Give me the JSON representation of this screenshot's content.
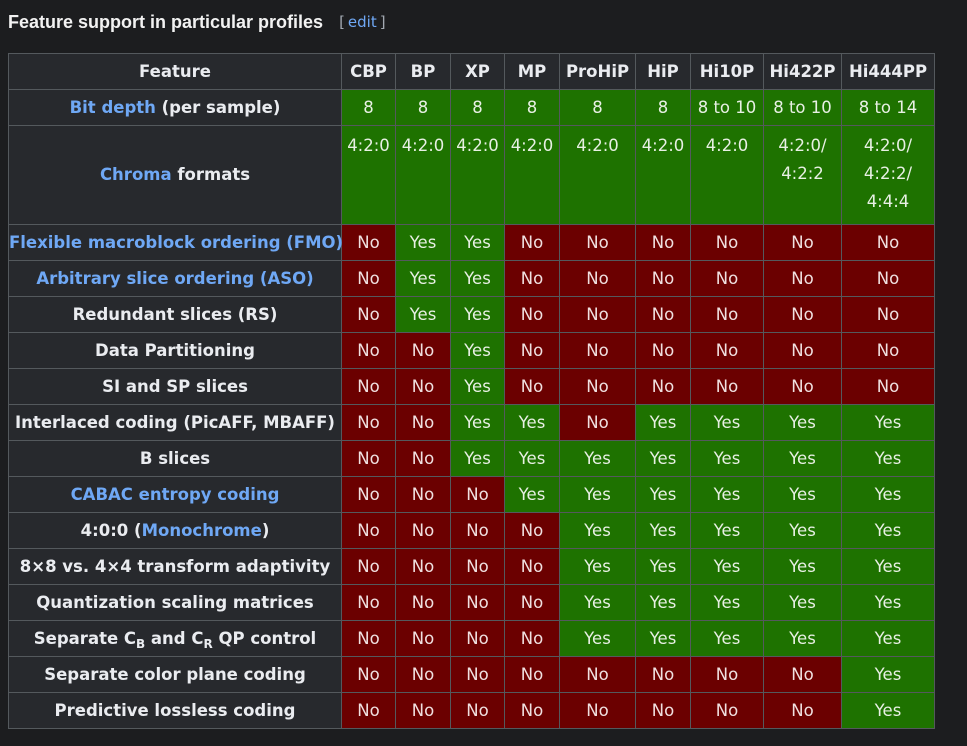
{
  "heading": {
    "title": "Feature support in particular profiles",
    "edit_open": "[",
    "edit_label": "edit",
    "edit_close": "]"
  },
  "columns": [
    "Feature",
    "CBP",
    "BP",
    "XP",
    "MP",
    "ProHiP",
    "HiP",
    "Hi10P",
    "Hi422P",
    "Hi444PP"
  ],
  "rows": [
    {
      "key": "bit-depth",
      "link": "Bit depth",
      "rest": " (per sample)",
      "kind": "val",
      "cells": [
        "8",
        "8",
        "8",
        "8",
        "8",
        "8",
        "8 to 10",
        "8 to 10",
        "8 to 14"
      ]
    },
    {
      "key": "chroma",
      "link": "Chroma",
      "rest": " formats",
      "kind": "val",
      "cells": [
        "4:2:0",
        "4:2:0",
        "4:2:0",
        "4:2:0",
        "4:2:0",
        "4:2:0",
        "4:2:0",
        "4:2:0/\n4:2:2",
        "4:2:0/\n4:2:2/\n4:4:4"
      ]
    },
    {
      "key": "fmo",
      "link": "Flexible macroblock ordering (FMO)",
      "rest": "",
      "kind": "yn",
      "cells": [
        "No",
        "Yes",
        "Yes",
        "No",
        "No",
        "No",
        "No",
        "No",
        "No"
      ]
    },
    {
      "key": "aso",
      "link": "Arbitrary slice ordering (ASO)",
      "rest": "",
      "kind": "yn",
      "cells": [
        "No",
        "Yes",
        "Yes",
        "No",
        "No",
        "No",
        "No",
        "No",
        "No"
      ]
    },
    {
      "key": "rs",
      "link": "",
      "rest": "Redundant slices (RS)",
      "kind": "yn",
      "cells": [
        "No",
        "Yes",
        "Yes",
        "No",
        "No",
        "No",
        "No",
        "No",
        "No"
      ]
    },
    {
      "key": "data-partitioning",
      "link": "",
      "rest": "Data Partitioning",
      "kind": "yn",
      "cells": [
        "No",
        "No",
        "Yes",
        "No",
        "No",
        "No",
        "No",
        "No",
        "No"
      ]
    },
    {
      "key": "si-sp",
      "link": "",
      "rest": "SI and SP slices",
      "kind": "yn",
      "cells": [
        "No",
        "No",
        "Yes",
        "No",
        "No",
        "No",
        "No",
        "No",
        "No"
      ]
    },
    {
      "key": "interlaced",
      "link": "",
      "rest": "Interlaced coding (PicAFF, MBAFF)",
      "kind": "yn",
      "cells": [
        "No",
        "No",
        "Yes",
        "Yes",
        "No",
        "Yes",
        "Yes",
        "Yes",
        "Yes"
      ]
    },
    {
      "key": "b-slices",
      "link": "",
      "rest": "B slices",
      "kind": "yn",
      "cells": [
        "No",
        "No",
        "Yes",
        "Yes",
        "Yes",
        "Yes",
        "Yes",
        "Yes",
        "Yes"
      ]
    },
    {
      "key": "cabac",
      "link": "CABAC entropy coding",
      "rest": "",
      "kind": "yn",
      "cells": [
        "No",
        "No",
        "No",
        "Yes",
        "Yes",
        "Yes",
        "Yes",
        "Yes",
        "Yes"
      ]
    },
    {
      "key": "monochrome",
      "pre": "4:0:0 (",
      "link": "Monochrome",
      "rest": ")",
      "kind": "yn",
      "cells": [
        "No",
        "No",
        "No",
        "No",
        "Yes",
        "Yes",
        "Yes",
        "Yes",
        "Yes"
      ]
    },
    {
      "key": "transform-8x8",
      "link": "",
      "rest": "8×8 vs. 4×4 transform adaptivity",
      "kind": "yn",
      "cells": [
        "No",
        "No",
        "No",
        "No",
        "Yes",
        "Yes",
        "Yes",
        "Yes",
        "Yes"
      ]
    },
    {
      "key": "quant-matrices",
      "link": "",
      "rest": "Quantization scaling matrices",
      "kind": "yn",
      "cells": [
        "No",
        "No",
        "No",
        "No",
        "Yes",
        "Yes",
        "Yes",
        "Yes",
        "Yes"
      ]
    },
    {
      "key": "separate-qp",
      "link": "",
      "rest": "",
      "kind": "yn",
      "label_parts": {
        "a": "Separate C",
        "b_sub": "B",
        "c": " and C",
        "d_sub": "R",
        "e": " QP control"
      },
      "cells": [
        "No",
        "No",
        "No",
        "No",
        "Yes",
        "Yes",
        "Yes",
        "Yes",
        "Yes"
      ]
    },
    {
      "key": "separate-color-plane",
      "link": "",
      "rest": "Separate color plane coding",
      "kind": "yn",
      "cells": [
        "No",
        "No",
        "No",
        "No",
        "No",
        "No",
        "No",
        "No",
        "Yes"
      ]
    },
    {
      "key": "lossless",
      "link": "",
      "rest": "Predictive lossless coding",
      "kind": "yn",
      "cells": [
        "No",
        "No",
        "No",
        "No",
        "No",
        "No",
        "No",
        "No",
        "Yes"
      ]
    }
  ],
  "colors": {
    "yes": "#1e7200",
    "no": "#6b0000",
    "link": "#6fa8f5",
    "header_bg": "#27292d"
  }
}
